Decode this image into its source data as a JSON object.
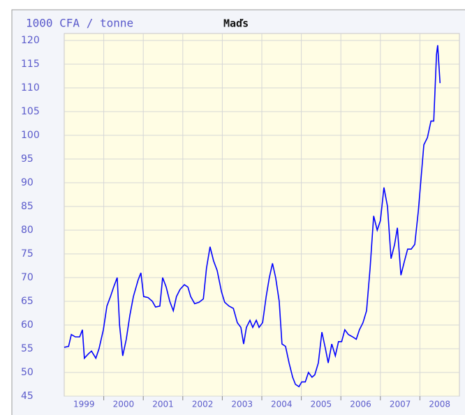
{
  "chart_data": {
    "type": "line",
    "title": "Maďs",
    "y_label": "1000 CFA / tonne",
    "x": [
      1999.0,
      1999.11,
      1999.18,
      1999.28,
      1999.39,
      1999.46,
      1999.51,
      1999.62,
      1999.69,
      1999.8,
      1999.88,
      1999.99,
      2000.08,
      2000.17,
      2000.25,
      2000.34,
      2000.4,
      2000.48,
      2000.57,
      2000.66,
      2000.75,
      2000.87,
      2000.94,
      2001.01,
      2001.12,
      2001.23,
      2001.31,
      2001.42,
      2001.49,
      2001.58,
      2001.67,
      2001.76,
      2001.84,
      2001.93,
      2002.04,
      2002.13,
      2002.2,
      2002.3,
      2002.41,
      2002.52,
      2002.6,
      2002.69,
      2002.78,
      2002.87,
      2002.98,
      2003.06,
      2003.17,
      2003.28,
      2003.38,
      2003.47,
      2003.54,
      2003.61,
      2003.7,
      2003.77,
      2003.86,
      2003.93,
      2004.02,
      2004.11,
      2004.19,
      2004.27,
      2004.35,
      2004.44,
      2004.51,
      2004.6,
      2004.69,
      2004.78,
      2004.85,
      2004.94,
      2005.01,
      2005.1,
      2005.18,
      2005.27,
      2005.34,
      2005.43,
      2005.52,
      2005.61,
      2005.68,
      2005.77,
      2005.86,
      2005.94,
      2006.02,
      2006.1,
      2006.19,
      2006.3,
      2006.39,
      2006.47,
      2006.56,
      2006.65,
      2006.74,
      2006.83,
      2006.92,
      2007.0,
      2007.09,
      2007.18,
      2007.27,
      2007.36,
      2007.43,
      2007.52,
      2007.61,
      2007.69,
      2007.78,
      2007.87,
      2007.96,
      2008.03,
      2008.1,
      2008.19,
      2008.28,
      2008.35,
      2008.42,
      2008.45,
      2008.51
    ],
    "series": [
      {
        "name": "Maďs",
        "color": "#0000ff",
        "values": [
          55.3,
          55.5,
          58,
          57.5,
          57.5,
          59,
          53,
          54,
          54.5,
          53,
          55,
          59,
          64,
          66,
          68,
          70,
          60,
          53.5,
          57,
          62,
          66,
          69.5,
          71,
          66,
          65.8,
          65,
          63.8,
          64,
          70,
          68,
          65,
          63,
          66,
          67.5,
          68.5,
          68,
          66,
          64.5,
          64.8,
          65.5,
          72,
          76.5,
          73.5,
          71.5,
          67,
          64.8,
          64,
          63.5,
          60.5,
          59.5,
          56,
          59.5,
          61,
          59.5,
          61,
          59.5,
          60.5,
          66,
          70,
          73,
          70,
          65,
          56,
          55.5,
          52,
          49,
          47.5,
          47,
          48,
          48,
          50,
          49,
          49.5,
          52,
          58.5,
          55,
          52,
          56,
          53.5,
          56.5,
          56.5,
          59,
          58,
          57.5,
          57,
          59,
          60.5,
          63,
          72,
          83,
          80,
          82,
          89,
          85,
          74,
          77,
          80.5,
          70.5,
          73.5,
          76,
          76,
          77,
          84,
          91,
          98,
          99.5,
          103,
          103,
          117,
          119,
          111
        ]
      }
    ],
    "xlim": [
      1999,
      2009
    ],
    "xticks": [
      {
        "value": 1999.5,
        "label": "1999"
      },
      {
        "value": 2000.5,
        "label": "2000"
      },
      {
        "value": 2001.5,
        "label": "2001"
      },
      {
        "value": 2002.5,
        "label": "2002"
      },
      {
        "value": 2003.5,
        "label": "2003"
      },
      {
        "value": 2004.5,
        "label": "2004"
      },
      {
        "value": 2005.5,
        "label": "2005"
      },
      {
        "value": 2006.5,
        "label": "2006"
      },
      {
        "value": 2007.5,
        "label": "2007"
      },
      {
        "value": 2008.5,
        "label": "2008"
      }
    ],
    "xgrid": [
      2000,
      2001,
      2002,
      2003,
      2004,
      2005,
      2006,
      2007,
      2008
    ],
    "ylim": [
      45,
      120
    ],
    "yticks": [
      45,
      50,
      55,
      60,
      65,
      70,
      75,
      80,
      85,
      90,
      95,
      100,
      105,
      110,
      115,
      120
    ],
    "grid": true
  }
}
